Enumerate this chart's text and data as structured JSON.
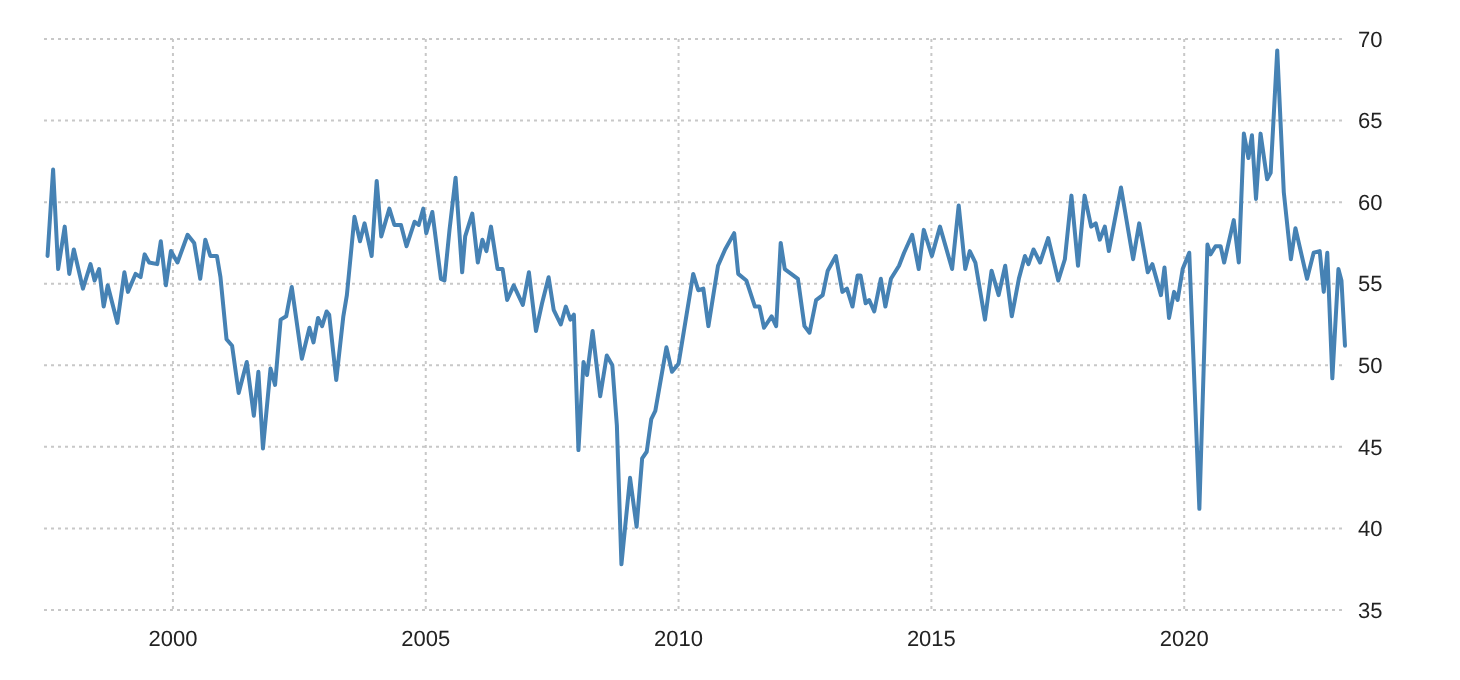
{
  "chart_data": {
    "type": "line",
    "x": [
      1997.52,
      1997.63,
      1997.73,
      1997.86,
      1997.95,
      1998.04,
      1998.22,
      1998.37,
      1998.45,
      1998.54,
      1998.63,
      1998.71,
      1998.9,
      1999.04,
      1999.11,
      1999.26,
      1999.36,
      1999.44,
      1999.53,
      1999.69,
      1999.76,
      1999.86,
      1999.96,
      2000.09,
      2000.29,
      2000.42,
      2000.54,
      2000.64,
      2000.74,
      2000.87,
      2000.94,
      2001.06,
      2001.17,
      2001.3,
      2001.46,
      2001.6,
      2001.69,
      2001.78,
      2001.93,
      2002.02,
      2002.13,
      2002.24,
      2002.35,
      2002.55,
      2002.7,
      2002.78,
      2002.87,
      2002.95,
      2003.04,
      2003.09,
      2003.23,
      2003.37,
      2003.44,
      2003.59,
      2003.7,
      2003.79,
      2003.93,
      2004.03,
      2004.12,
      2004.28,
      2004.38,
      2004.51,
      2004.62,
      2004.78,
      2004.86,
      2004.95,
      2005.01,
      2005.13,
      2005.3,
      2005.37,
      2005.47,
      2005.59,
      2005.72,
      2005.78,
      2005.92,
      2006.03,
      2006.12,
      2006.2,
      2006.29,
      2006.42,
      2006.52,
      2006.61,
      2006.74,
      2006.92,
      2007.04,
      2007.18,
      2007.3,
      2007.43,
      2007.53,
      2007.67,
      2007.77,
      2007.86,
      2007.93,
      2008.02,
      2008.12,
      2008.19,
      2008.3,
      2008.45,
      2008.58,
      2008.69,
      2008.78,
      2008.87,
      2009.04,
      2009.17,
      2009.28,
      2009.37,
      2009.46,
      2009.54,
      2009.76,
      2009.87,
      2010.0,
      2010.29,
      2010.39,
      2010.49,
      2010.59,
      2010.78,
      2010.92,
      2011.1,
      2011.18,
      2011.34,
      2011.51,
      2011.6,
      2011.69,
      2011.84,
      2011.93,
      2012.02,
      2012.1,
      2012.36,
      2012.49,
      2012.59,
      2012.72,
      2012.85,
      2012.95,
      2013.11,
      2013.24,
      2013.33,
      2013.44,
      2013.54,
      2013.6,
      2013.7,
      2013.77,
      2013.87,
      2014.0,
      2014.09,
      2014.2,
      2014.36,
      2014.46,
      2014.62,
      2014.75,
      2014.85,
      2015.01,
      2015.17,
      2015.41,
      2015.54,
      2015.67,
      2015.76,
      2015.87,
      2016.06,
      2016.19,
      2016.33,
      2016.46,
      2016.59,
      2016.73,
      2016.85,
      2016.92,
      2017.02,
      2017.15,
      2017.31,
      2017.51,
      2017.64,
      2017.77,
      2017.9,
      2018.03,
      2018.16,
      2018.25,
      2018.33,
      2018.43,
      2018.51,
      2018.75,
      2018.99,
      2019.11,
      2019.28,
      2019.37,
      2019.54,
      2019.61,
      2019.7,
      2019.8,
      2019.87,
      2019.97,
      2020.1,
      2020.3,
      2020.46,
      2020.52,
      2020.62,
      2020.72,
      2020.79,
      2020.98,
      2021.08,
      2021.18,
      2021.27,
      2021.34,
      2021.42,
      2021.51,
      2021.64,
      2021.71,
      2021.84,
      2021.97,
      2022.11,
      2022.2,
      2022.43,
      2022.56,
      2022.68,
      2022.76,
      2022.83,
      2022.93,
      2023.05,
      2023.11,
      2023.18
    ],
    "series": [
      {
        "color": "#4682b4",
        "values": [
          56.7,
          62.0,
          55.9,
          58.5,
          55.6,
          57.1,
          54.7,
          56.2,
          55.2,
          55.9,
          53.6,
          54.9,
          52.6,
          55.7,
          54.5,
          55.6,
          55.4,
          56.8,
          56.3,
          56.2,
          57.6,
          54.9,
          57.0,
          56.3,
          58.0,
          57.5,
          55.3,
          57.7,
          56.7,
          56.7,
          55.4,
          51.6,
          51.2,
          48.3,
          50.2,
          46.9,
          49.6,
          44.9,
          49.8,
          48.8,
          52.8,
          53.0,
          54.8,
          50.4,
          52.3,
          51.4,
          52.9,
          52.4,
          53.3,
          53.1,
          49.1,
          53.0,
          54.3,
          59.1,
          57.6,
          58.7,
          56.7,
          61.3,
          57.9,
          59.6,
          58.6,
          58.6,
          57.3,
          58.8,
          58.6,
          59.6,
          58.1,
          59.4,
          55.3,
          55.2,
          58.3,
          61.5,
          55.7,
          57.9,
          59.3,
          56.3,
          57.7,
          57.0,
          58.5,
          55.9,
          55.9,
          54.0,
          54.9,
          53.7,
          55.7,
          52.1,
          53.8,
          55.4,
          53.4,
          52.5,
          53.6,
          52.8,
          53.1,
          44.8,
          50.2,
          49.4,
          52.1,
          48.1,
          50.6,
          50.0,
          46.3,
          37.8,
          43.1,
          40.1,
          44.3,
          44.7,
          46.7,
          47.2,
          51.1,
          49.6,
          50.1,
          55.6,
          54.6,
          54.7,
          52.4,
          56.1,
          57.1,
          58.1,
          55.6,
          55.2,
          53.6,
          53.6,
          52.3,
          53.0,
          52.4,
          57.5,
          55.9,
          55.3,
          52.4,
          52.0,
          54.0,
          54.3,
          55.8,
          56.7,
          54.5,
          54.7,
          53.6,
          55.5,
          55.5,
          53.8,
          54.0,
          53.3,
          55.3,
          53.6,
          55.3,
          56.1,
          56.9,
          58.0,
          55.9,
          58.3,
          56.7,
          58.5,
          55.9,
          59.8,
          55.9,
          57.0,
          56.3,
          52.8,
          55.8,
          54.3,
          56.1,
          53.0,
          55.3,
          56.7,
          56.2,
          57.1,
          56.3,
          57.8,
          55.2,
          56.5,
          60.4,
          56.1,
          60.4,
          58.5,
          58.7,
          57.7,
          58.5,
          57.0,
          60.9,
          56.5,
          58.7,
          55.7,
          56.2,
          54.3,
          56.0,
          52.9,
          54.5,
          54.0,
          55.9,
          56.9,
          41.2,
          57.4,
          56.8,
          57.3,
          57.3,
          56.3,
          58.9,
          56.3,
          64.2,
          62.7,
          64.1,
          60.2,
          64.2,
          61.4,
          61.8,
          69.3,
          60.6,
          56.5,
          58.4,
          55.3,
          56.9,
          57.0,
          54.5,
          56.9,
          49.2,
          55.9,
          55.2,
          51.2
        ]
      }
    ],
    "xlim": [
      1997.45,
      2023.2
    ],
    "xticks": [
      2000,
      2005,
      2010,
      2015,
      2020
    ],
    "ylim": [
      35,
      70
    ],
    "yticks": [
      35,
      40,
      45,
      50,
      55,
      60,
      65,
      70
    ],
    "grid": true
  }
}
